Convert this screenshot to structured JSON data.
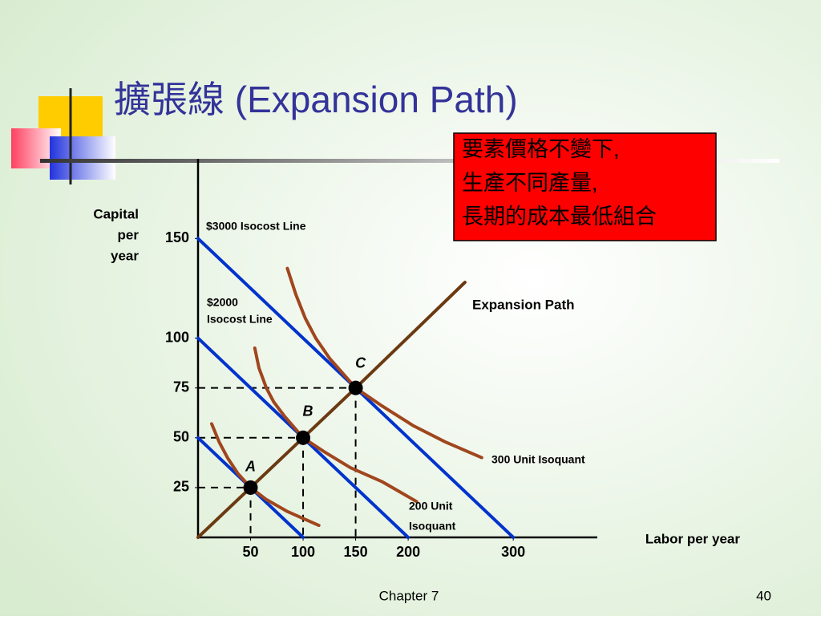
{
  "chart_data": {
    "type": "line",
    "title": "擴張線 (Expansion Path)",
    "note": [
      "要素價格不變下,",
      "生產不同產量,",
      "長期的成本最低組合"
    ],
    "y_label": [
      "Capital",
      "per",
      "year"
    ],
    "x_label": "Labor per year",
    "xlim": [
      0,
      380
    ],
    "ylim": [
      0,
      190
    ],
    "xticks": [
      50,
      100,
      150,
      200,
      300
    ],
    "yticks": [
      25,
      50,
      75,
      100,
      150
    ],
    "series": [
      {
        "color": "#0033cc",
        "x": [
          0,
          100
        ],
        "values": [
          50,
          0
        ]
      },
      {
        "color": "#0033cc",
        "x": [
          0,
          200
        ],
        "values": [
          100,
          0
        ]
      },
      {
        "color": "#0033cc",
        "x": [
          0,
          300
        ],
        "values": [
          150,
          0
        ]
      },
      {
        "color": "#6b3a12",
        "x": [
          0,
          50,
          100,
          150,
          254
        ],
        "values": [
          0,
          25,
          50,
          75,
          128
        ]
      },
      {
        "color": "#a0461e",
        "x": [
          13,
          20,
          28,
          38,
          50,
          65,
          85,
          115
        ],
        "values": [
          57,
          48,
          40,
          32,
          25,
          19,
          13,
          6
        ]
      },
      {
        "color": "#a0461e",
        "x": [
          54,
          58,
          65,
          72,
          82,
          100,
          120,
          145,
          175,
          208
        ],
        "values": [
          95,
          85,
          75,
          68,
          61,
          50,
          43,
          35,
          28,
          18
        ]
      },
      {
        "color": "#a0461e",
        "x": [
          85,
          93,
          102,
          112,
          125,
          150,
          175,
          205,
          235,
          270
        ],
        "values": [
          135,
          122,
          110,
          100,
          90,
          75,
          66,
          56,
          48,
          40
        ]
      }
    ],
    "points": [
      {
        "label": "A",
        "x": 50,
        "y": 25
      },
      {
        "label": "B",
        "x": 100,
        "y": 50
      },
      {
        "label": "C",
        "x": 150,
        "y": 75
      }
    ],
    "annotations": [
      "$3000 Isocost Line",
      "$2000",
      "Isocost Line",
      "Expansion Path",
      "300 Unit Isoquant",
      "200 Unit",
      "Isoquant"
    ]
  },
  "footer": {
    "chapter": "Chapter 7",
    "page": "40"
  }
}
